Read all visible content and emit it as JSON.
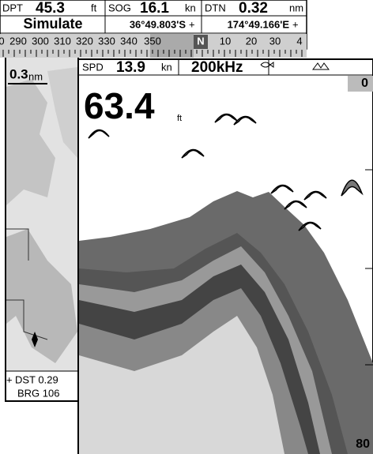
{
  "top_bar": {
    "dpt": {
      "label": "DPT",
      "value": 45.3,
      "unit": "ft"
    },
    "sog": {
      "label": "SOG",
      "value": 16.1,
      "unit": "kn"
    },
    "dtn": {
      "label": "DTN",
      "value": 0.32,
      "unit": "nm"
    },
    "status": "Simulate",
    "latitude": "36°49.803'S",
    "longitude": "174°49.166'E",
    "compass": [
      "0",
      "290",
      "300",
      "310",
      "320",
      "330",
      "340",
      "350",
      "N",
      "10",
      "20",
      "30",
      "4"
    ]
  },
  "map": {
    "scale": 0.3,
    "scale_unit": "nm",
    "dst": "DST 0.29",
    "brg": "BRG 106"
  },
  "sonar": {
    "spd_label": "SPD",
    "spd": 13.9,
    "spd_unit": "kn",
    "frequency": "200kHz",
    "depth": 63.4,
    "depth_unit": "ft",
    "range_top": "0",
    "range_bottom": "80"
  }
}
